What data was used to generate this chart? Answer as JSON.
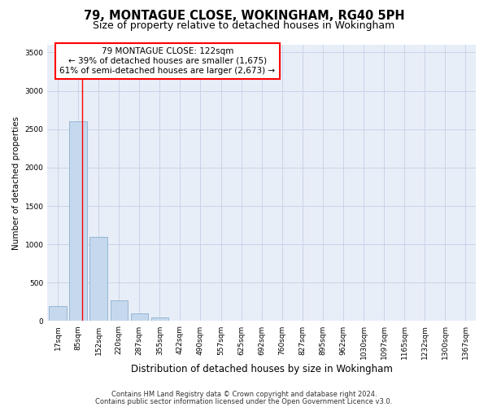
{
  "title": "79, MONTAGUE CLOSE, WOKINGHAM, RG40 5PH",
  "subtitle": "Size of property relative to detached houses in Wokingham",
  "xlabel": "Distribution of detached houses by size in Wokingham",
  "ylabel": "Number of detached properties",
  "categories": [
    "17sqm",
    "85sqm",
    "152sqm",
    "220sqm",
    "287sqm",
    "355sqm",
    "422sqm",
    "490sqm",
    "557sqm",
    "625sqm",
    "692sqm",
    "760sqm",
    "827sqm",
    "895sqm",
    "962sqm",
    "1030sqm",
    "1097sqm",
    "1165sqm",
    "1232sqm",
    "1300sqm",
    "1367sqm"
  ],
  "values": [
    200,
    2600,
    1100,
    270,
    100,
    50,
    0,
    0,
    0,
    0,
    0,
    0,
    0,
    0,
    0,
    0,
    0,
    0,
    0,
    0,
    0
  ],
  "bar_color": "#c5d8ed",
  "bar_edge_color": "#8ab0d0",
  "red_line_x": 1.2,
  "ylim_max": 3600,
  "yticks": [
    0,
    500,
    1000,
    1500,
    2000,
    2500,
    3000,
    3500
  ],
  "annotation_line0": "79 MONTAGUE CLOSE: 122sqm",
  "annotation_line1": "← 39% of detached houses are smaller (1,675)",
  "annotation_line2": "61% of semi-detached houses are larger (2,673) →",
  "footer1": "Contains HM Land Registry data © Crown copyright and database right 2024.",
  "footer2": "Contains public sector information licensed under the Open Government Licence v3.0.",
  "bg_color": "#e8eef8",
  "fig_bg": "#ffffff",
  "grid_color": "#c8d4e8",
  "title_fontsize": 10.5,
  "subtitle_fontsize": 9,
  "xlabel_fontsize": 8.5,
  "ylabel_fontsize": 7.5,
  "tick_fontsize": 6.5,
  "ann_fontsize": 7.5,
  "footer_fontsize": 6
}
